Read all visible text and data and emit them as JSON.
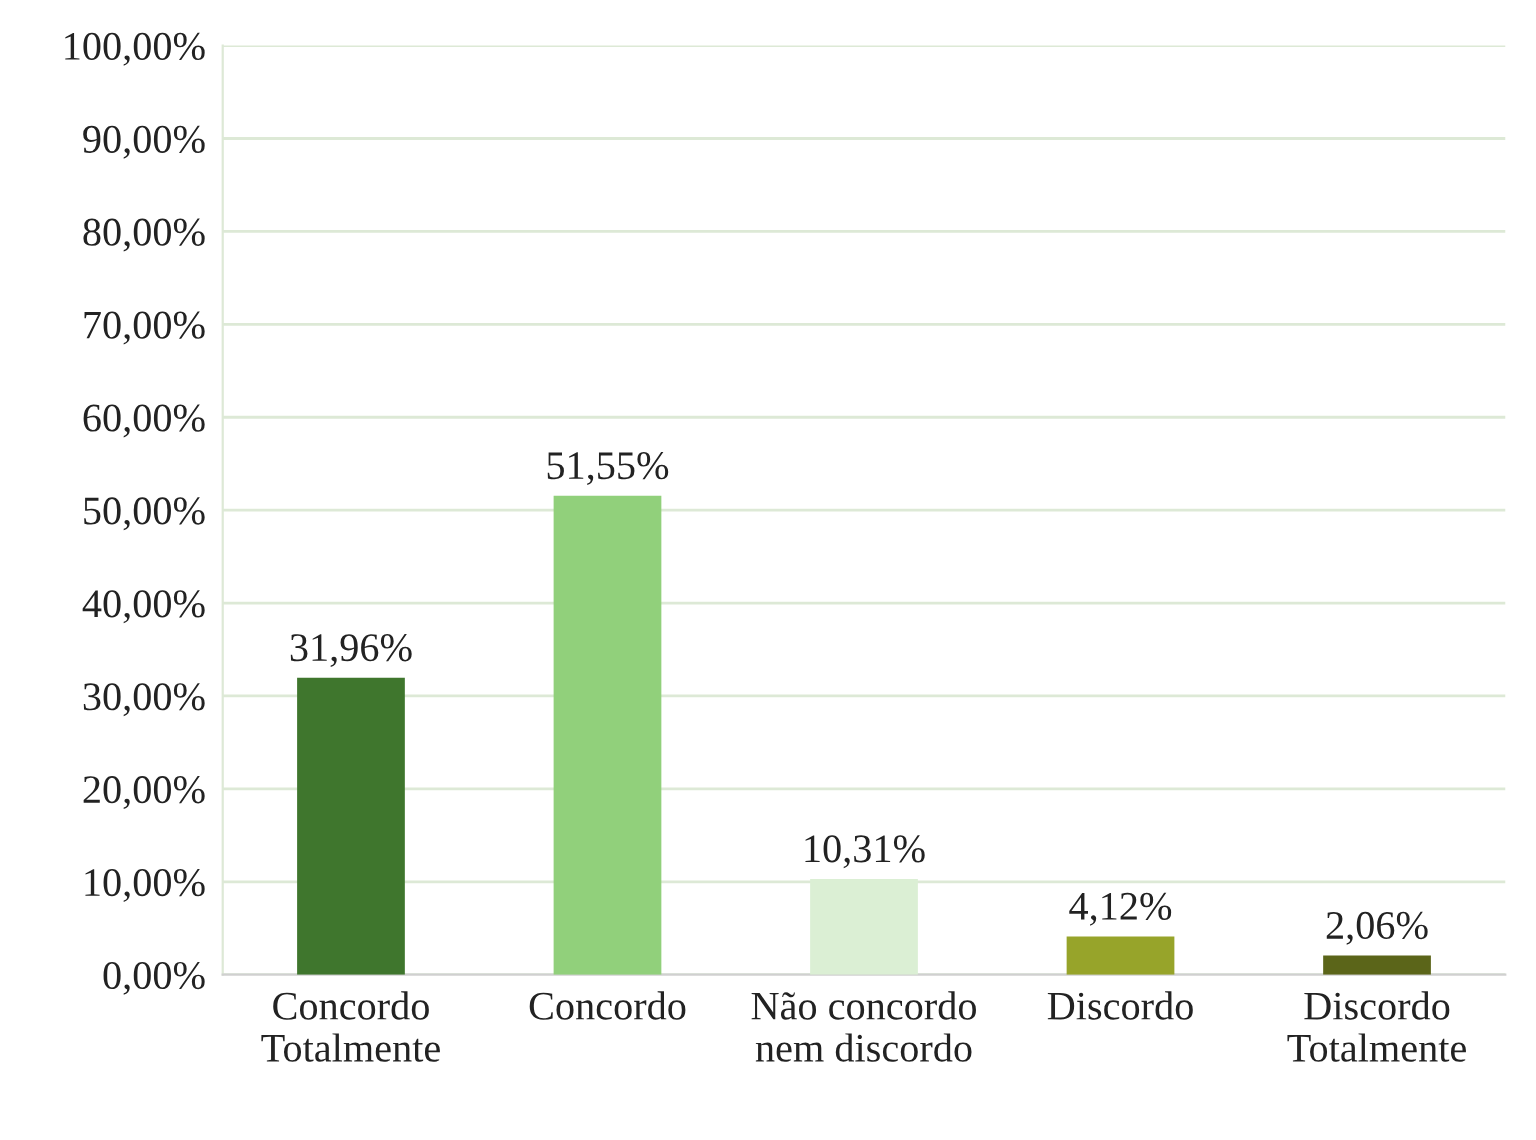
{
  "chart_data": {
    "type": "bar",
    "categories": [
      "Concordo\nTotalmente",
      "Concordo",
      "Não concordo\nnem discordo",
      "Discordo",
      "Discordo\nTotalmente"
    ],
    "values": [
      31.96,
      51.55,
      10.31,
      4.12,
      2.06
    ],
    "colors": [
      "#3f762d",
      "#91d07b",
      "#dbefd4",
      "#97a42a",
      "#5b6519"
    ],
    "value_labels": [
      "31,96%",
      "51,55%",
      "10,31%",
      "4,12%",
      "2,06%"
    ],
    "ylim": [
      0,
      100
    ],
    "yticks": [
      {
        "value": 0,
        "label": "0,00%"
      },
      {
        "value": 10,
        "label": "10,00%"
      },
      {
        "value": 20,
        "label": "20,00%"
      },
      {
        "value": 30,
        "label": "30,00%"
      },
      {
        "value": 40,
        "label": "40,00%"
      },
      {
        "value": 50,
        "label": "50,00%"
      },
      {
        "value": 60,
        "label": "60,00%"
      },
      {
        "value": 70,
        "label": "70,00%"
      },
      {
        "value": 80,
        "label": "80,00%"
      },
      {
        "value": 90,
        "label": "90,00%"
      },
      {
        "value": 100,
        "label": "100,00%"
      }
    ],
    "grid": "y"
  }
}
